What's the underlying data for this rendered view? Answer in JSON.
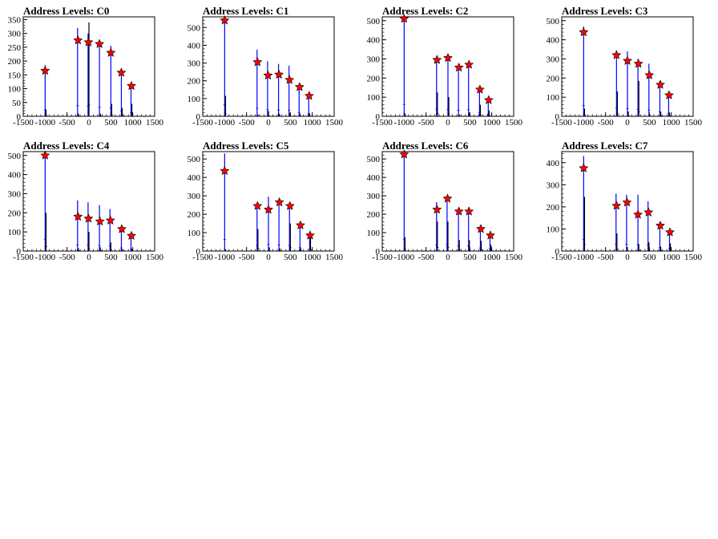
{
  "figure": {
    "background": "#ffffff",
    "panel_count": 8
  },
  "style": {
    "hist_color": "#0000ff",
    "hist_color_overlay": "#000000",
    "marker_fill": "#ff0000",
    "marker_stroke": "#000000",
    "axis_color": "#000000"
  },
  "chart_data": [
    {
      "type": "bar",
      "title": "Address Levels: C0",
      "xlim": [
        -1500,
        1500
      ],
      "ylim": [
        0,
        360
      ],
      "xticks": [
        -1500,
        -1000,
        -500,
        0,
        500,
        1000,
        1500
      ],
      "yticks": [
        0,
        50,
        100,
        150,
        200,
        250,
        300,
        350
      ],
      "histogram": {
        "x": [
          -1000,
          -980,
          -260,
          -240,
          -20,
          0,
          240,
          260,
          500,
          520,
          740,
          760,
          960,
          980
        ],
        "values": [
          185,
          25,
          320,
          10,
          300,
          340,
          270,
          10,
          255,
          45,
          165,
          30,
          120,
          45
        ]
      },
      "peaks": {
        "x": [
          -1000,
          -250,
          -10,
          240,
          500,
          740,
          970
        ],
        "values": [
          165,
          275,
          268,
          262,
          230,
          158,
          110
        ]
      }
    },
    {
      "type": "bar",
      "title": "Address Levels: C1",
      "xlim": [
        -1500,
        1500
      ],
      "ylim": [
        0,
        560
      ],
      "xticks": [
        -1500,
        -1000,
        -500,
        0,
        500,
        1000,
        1500
      ],
      "yticks": [
        0,
        100,
        200,
        300,
        400,
        500
      ],
      "histogram": {
        "x": [
          -1000,
          -980,
          -260,
          -240,
          -20,
          0,
          230,
          250,
          470,
          490,
          700,
          720,
          920,
          940
        ],
        "values": [
          545,
          115,
          375,
          10,
          310,
          30,
          295,
          15,
          285,
          20,
          180,
          15,
          130,
          15
        ]
      },
      "peaks": {
        "x": [
          -1000,
          -250,
          -10,
          240,
          480,
          710,
          930
        ],
        "values": [
          540,
          305,
          230,
          235,
          205,
          165,
          115
        ]
      }
    },
    {
      "type": "bar",
      "title": "Address Levels: C2",
      "xlim": [
        -1500,
        1500
      ],
      "ylim": [
        0,
        520
      ],
      "xticks": [
        -1500,
        -1000,
        -500,
        0,
        500,
        1000,
        1500
      ],
      "yticks": [
        0,
        100,
        200,
        300,
        400,
        500
      ],
      "histogram": {
        "x": [
          -1000,
          -980,
          -260,
          -240,
          0,
          20,
          240,
          260,
          470,
          490,
          720,
          740,
          920,
          940
        ],
        "values": [
          520,
          15,
          310,
          125,
          305,
          100,
          265,
          10,
          285,
          20,
          150,
          60,
          95,
          30
        ]
      },
      "peaks": {
        "x": [
          -1000,
          -250,
          0,
          250,
          480,
          730,
          930
        ],
        "values": [
          510,
          295,
          305,
          255,
          270,
          140,
          85
        ]
      }
    },
    {
      "type": "bar",
      "title": "Address Levels: C3",
      "xlim": [
        -1500,
        1500
      ],
      "ylim": [
        0,
        520
      ],
      "xticks": [
        -1500,
        -1000,
        -500,
        0,
        500,
        1000,
        1500
      ],
      "yticks": [
        0,
        100,
        200,
        300,
        400,
        500
      ],
      "histogram": {
        "x": [
          -1000,
          -980,
          -250,
          -230,
          0,
          20,
          240,
          260,
          490,
          510,
          740,
          760,
          940,
          960
        ],
        "values": [
          470,
          40,
          345,
          130,
          340,
          25,
          300,
          185,
          275,
          10,
          185,
          25,
          120,
          20
        ]
      },
      "peaks": {
        "x": [
          -1000,
          -250,
          0,
          250,
          500,
          750,
          950
        ],
        "values": [
          440,
          320,
          290,
          275,
          215,
          165,
          110
        ]
      }
    },
    {
      "type": "bar",
      "title": "Address Levels: C4",
      "xlim": [
        -1500,
        1500
      ],
      "ylim": [
        0,
        520
      ],
      "xticks": [
        -1500,
        -1000,
        -500,
        0,
        500,
        1000,
        1500
      ],
      "yticks": [
        0,
        100,
        200,
        300,
        400,
        500
      ],
      "histogram": {
        "x": [
          -1000,
          -980,
          -260,
          -240,
          -20,
          0,
          240,
          260,
          480,
          500,
          740,
          760,
          960,
          980
        ],
        "values": [
          505,
          200,
          265,
          15,
          255,
          100,
          240,
          20,
          220,
          45,
          135,
          10,
          90,
          10
        ]
      },
      "peaks": {
        "x": [
          -1000,
          -250,
          -10,
          250,
          490,
          750,
          970
        ],
        "values": [
          500,
          180,
          170,
          155,
          160,
          115,
          80
        ]
      }
    },
    {
      "type": "bar",
      "title": "Address Levels: C5",
      "xlim": [
        -1500,
        1500
      ],
      "ylim": [
        0,
        540
      ],
      "xticks": [
        -1500,
        -1000,
        -500,
        0,
        500,
        1000,
        1500
      ],
      "yticks": [
        0,
        100,
        200,
        300,
        400,
        500
      ],
      "histogram": {
        "x": [
          -1000,
          -980,
          -260,
          -240,
          0,
          20,
          240,
          260,
          480,
          500,
          720,
          740,
          940,
          960
        ],
        "values": [
          530,
          10,
          245,
          120,
          295,
          20,
          275,
          15,
          255,
          150,
          155,
          15,
          95,
          70
        ]
      },
      "peaks": {
        "x": [
          -1000,
          -250,
          0,
          250,
          490,
          730,
          950
        ],
        "values": [
          435,
          245,
          225,
          265,
          245,
          140,
          85
        ]
      }
    },
    {
      "type": "bar",
      "title": "Address Levels: C6",
      "xlim": [
        -1500,
        1500
      ],
      "ylim": [
        0,
        540
      ],
      "xticks": [
        -1500,
        -1000,
        -500,
        0,
        500,
        1000,
        1500
      ],
      "yticks": [
        0,
        100,
        200,
        300,
        400,
        500
      ],
      "histogram": {
        "x": [
          -1000,
          -980,
          -260,
          -240,
          -20,
          0,
          240,
          260,
          470,
          490,
          740,
          760,
          960,
          980
        ],
        "values": [
          535,
          75,
          265,
          160,
          290,
          160,
          225,
          60,
          235,
          60,
          140,
          55,
          100,
          35
        ]
      },
      "peaks": {
        "x": [
          -1000,
          -250,
          -10,
          250,
          480,
          750,
          970
        ],
        "values": [
          525,
          225,
          285,
          215,
          215,
          120,
          85
        ]
      }
    },
    {
      "type": "bar",
      "title": "Address Levels: C7",
      "xlim": [
        -1500,
        1500
      ],
      "ylim": [
        0,
        450
      ],
      "xticks": [
        -1500,
        -1000,
        -500,
        0,
        500,
        1000,
        1500
      ],
      "yticks": [
        0,
        100,
        200,
        300,
        400
      ],
      "histogram": {
        "x": [
          -1000,
          -980,
          -260,
          -240,
          -20,
          0,
          240,
          260,
          470,
          490,
          740,
          760,
          960,
          980
        ],
        "values": [
          430,
          245,
          260,
          80,
          255,
          10,
          255,
          30,
          225,
          40,
          130,
          20,
          95,
          35
        ]
      },
      "peaks": {
        "x": [
          -1000,
          -250,
          -10,
          240,
          480,
          750,
          970
        ],
        "values": [
          375,
          205,
          220,
          165,
          175,
          115,
          85
        ]
      }
    }
  ]
}
